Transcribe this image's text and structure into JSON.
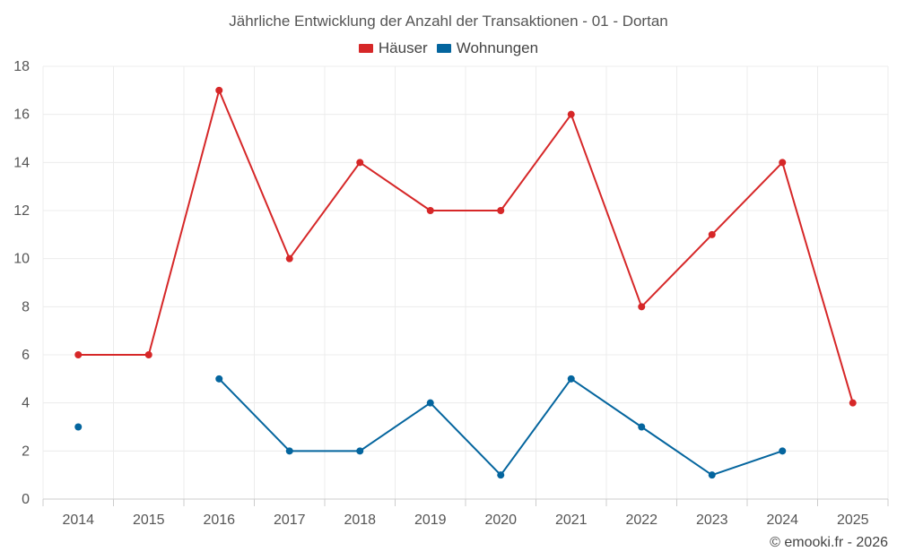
{
  "chart_data": {
    "type": "line",
    "title": "Jährliche Entwicklung der Anzahl der Transaktionen - 01 - Dortan",
    "categories": [
      "2014",
      "2015",
      "2016",
      "2017",
      "2018",
      "2019",
      "2020",
      "2021",
      "2022",
      "2023",
      "2024",
      "2025"
    ],
    "xlabel": "",
    "ylabel": "",
    "ylim": [
      0,
      18
    ],
    "yticks": [
      "0",
      "2",
      "4",
      "6",
      "8",
      "10",
      "12",
      "14",
      "16",
      "18"
    ],
    "grid": true,
    "legend_position": "top-center",
    "series": [
      {
        "name": "Häuser",
        "color": "#d62728",
        "values": [
          6,
          6,
          17,
          10,
          14,
          12,
          12,
          16,
          8,
          11,
          14,
          4
        ]
      },
      {
        "name": "Wohnungen",
        "color": "#04659e",
        "values": [
          3,
          null,
          5,
          2,
          2,
          4,
          1,
          5,
          3,
          1,
          2,
          null
        ]
      }
    ]
  },
  "copyright": "© emooki.fr - 2026"
}
